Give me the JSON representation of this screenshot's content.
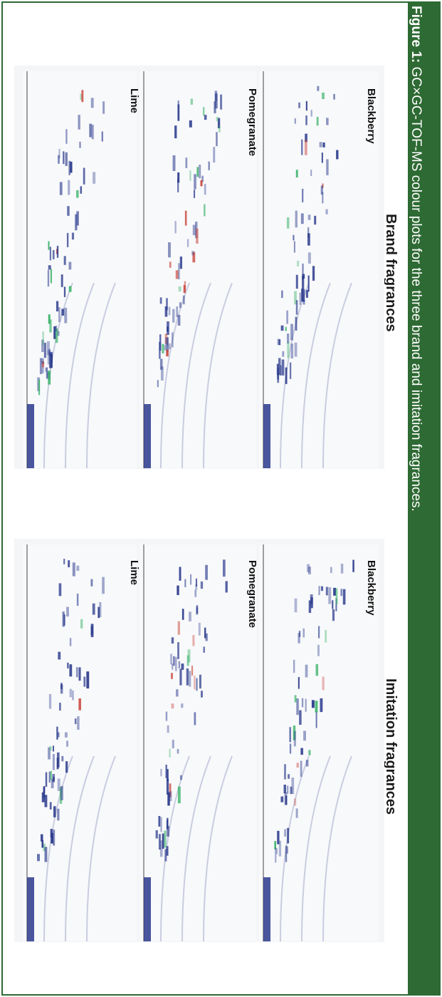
{
  "caption": {
    "prefix": "Figure 1:",
    "text": " GC×GC-TOF-MS colour plots for the three brand and imitation fragrances."
  },
  "groups": [
    {
      "title": "Brand fragrances",
      "panels": [
        {
          "label": "Blackberry"
        },
        {
          "label": "Pomegranate"
        },
        {
          "label": "Lime"
        }
      ]
    },
    {
      "title": "Imitation fragrances",
      "panels": [
        {
          "label": "Blackberry"
        },
        {
          "label": "Pomegranate"
        },
        {
          "label": "Lime"
        }
      ]
    }
  ],
  "colors": {
    "band": "#2e6a33",
    "peak_blue": "#2a3a8c",
    "peak_green": "#3bb36a",
    "peak_red": "#c8453a"
  }
}
